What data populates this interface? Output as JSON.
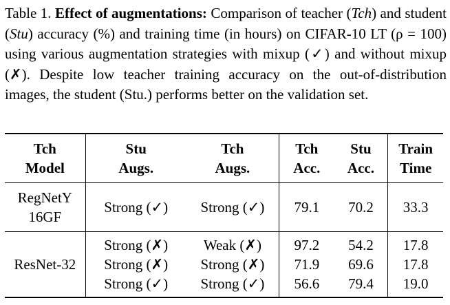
{
  "caption": {
    "prefix": "Table 1. ",
    "title": "Effect of augmentations:",
    "seg1": " Comparison of teacher (",
    "tch": "Tch",
    "seg2": ") and student (",
    "stu": "Stu",
    "seg3": ") accuracy (%) and training time (in hours) on CIFAR-10 LT (ρ = 100) using various augmentation strategies with mixup (✓) and without mixup (✗). Despite low teacher training accuracy on the out-of-distribution images, the student (Stu.) performs better on the validation set."
  },
  "table": {
    "headers": {
      "model": [
        "Tch",
        "Model"
      ],
      "stu_augs": [
        "Stu",
        "Augs."
      ],
      "tch_augs": [
        "Tch",
        "Augs."
      ],
      "tch_acc": [
        "Tch",
        "Acc."
      ],
      "stu_acc": [
        "Stu",
        "Acc."
      ],
      "train_time": [
        "Train",
        "Time"
      ]
    },
    "group1": {
      "model": [
        "RegNetY",
        "16GF"
      ],
      "stu_augs": "Strong (✓)",
      "tch_augs": "Strong (✓)",
      "tch_acc": "79.1",
      "stu_acc": "70.2",
      "train_time": "33.3"
    },
    "group2": {
      "model": "ResNet-32",
      "rows": [
        {
          "stu_augs": "Strong (✗)",
          "tch_augs": "Weak (✗)",
          "tch_acc": "97.2",
          "stu_acc": "54.2",
          "train_time": "17.8"
        },
        {
          "stu_augs": "Strong (✗)",
          "tch_augs": "Strong (✗)",
          "tch_acc": "71.9",
          "stu_acc": "69.6",
          "train_time": "17.8"
        },
        {
          "stu_augs": "Strong (✓)",
          "tch_augs": "Strong (✓)",
          "tch_acc": "56.6",
          "stu_acc": "79.4",
          "train_time": "19.0"
        }
      ]
    }
  }
}
